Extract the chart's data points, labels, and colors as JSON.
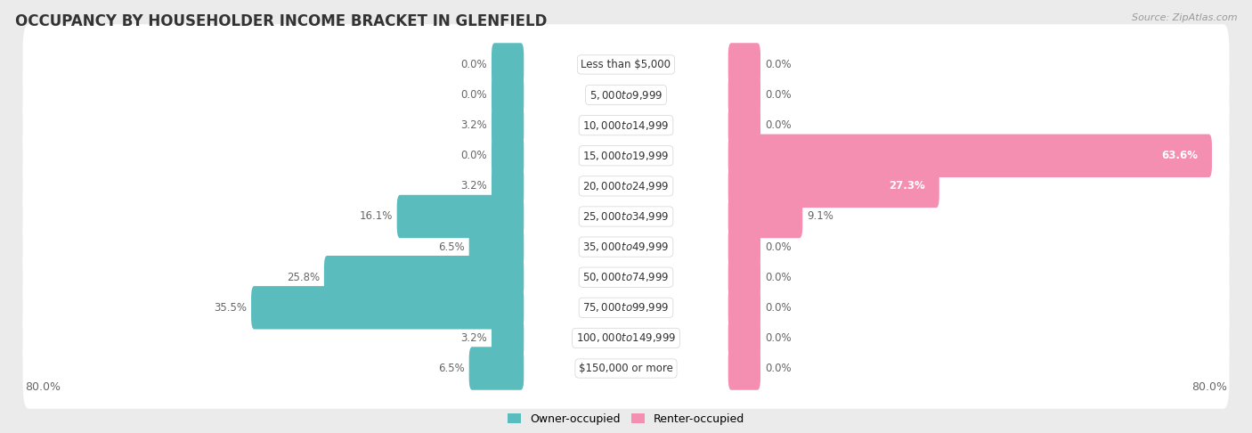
{
  "title": "OCCUPANCY BY HOUSEHOLDER INCOME BRACKET IN GLENFIELD",
  "source": "Source: ZipAtlas.com",
  "categories": [
    "Less than $5,000",
    "$5,000 to $9,999",
    "$10,000 to $14,999",
    "$15,000 to $19,999",
    "$20,000 to $24,999",
    "$25,000 to $34,999",
    "$35,000 to $49,999",
    "$50,000 to $74,999",
    "$75,000 to $99,999",
    "$100,000 to $149,999",
    "$150,000 or more"
  ],
  "owner_values": [
    0.0,
    0.0,
    3.2,
    0.0,
    3.2,
    16.1,
    6.5,
    25.8,
    35.5,
    3.2,
    6.5
  ],
  "renter_values": [
    0.0,
    0.0,
    0.0,
    63.6,
    27.3,
    9.1,
    0.0,
    0.0,
    0.0,
    0.0,
    0.0
  ],
  "owner_color": "#5bbcbe",
  "renter_color": "#f48fb1",
  "background_color": "#ebebeb",
  "row_bg_color": "#ffffff",
  "row_alt_bg_color": "#e8e8e8",
  "label_color": "#666666",
  "title_color": "#333333",
  "axis_max": 80.0,
  "min_stub": 3.5,
  "bar_height": 0.62,
  "legend_owner": "Owner-occupied",
  "legend_renter": "Renter-occupied"
}
